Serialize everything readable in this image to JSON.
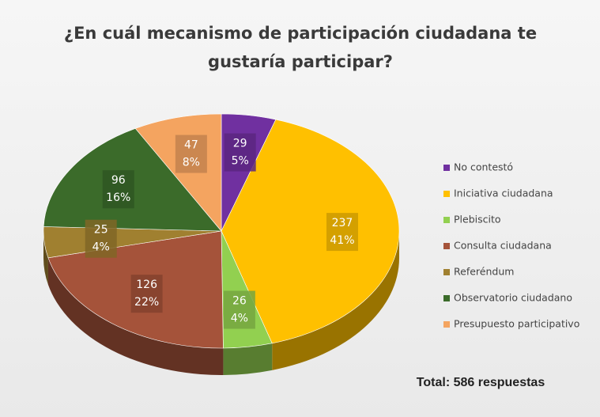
{
  "chart_data": {
    "type": "pie",
    "title": "¿En cuál mecanismo de participación ciudadana te gustaría participar?",
    "categories": [
      "No contestó",
      "Iniciativa ciudadana",
      "Plebiscito",
      "Consulta ciudadana",
      "Referéndum",
      "Observatorio ciudadano",
      "Presupuesto participativo"
    ],
    "values": [
      29,
      237,
      26,
      126,
      25,
      96,
      47
    ],
    "percent_labels": [
      "5%",
      "41%",
      "4%",
      "22%",
      "4%",
      "16%",
      "8%"
    ],
    "colors": [
      "#7030a0",
      "#ffc000",
      "#92d050",
      "#a5533a",
      "#a08030",
      "#3b6b2a",
      "#f4a460"
    ],
    "annotation": "Total: 586 respuestas",
    "legend": "right"
  }
}
